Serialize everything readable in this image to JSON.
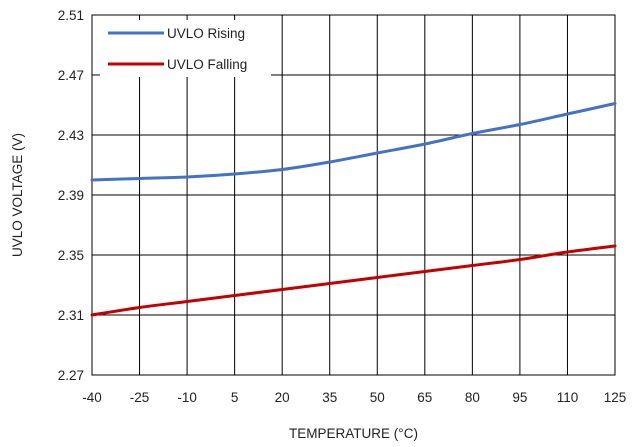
{
  "chart_data": {
    "type": "line",
    "xlabel": "TEMPERATURE (°C)",
    "ylabel": "UVLO VOLTAGE (V)",
    "xlim": [
      -40,
      125
    ],
    "ylim": [
      2.27,
      2.51
    ],
    "x_ticks": [
      "-40",
      "-25",
      "-10",
      "5",
      "20",
      "35",
      "50",
      "65",
      "80",
      "95",
      "110",
      "125"
    ],
    "y_ticks": [
      "2.27",
      "2.31",
      "2.35",
      "2.39",
      "2.43",
      "2.47",
      "2.51"
    ],
    "grid": true,
    "legend_position": "top-left",
    "x": [
      -40,
      -25,
      -10,
      5,
      20,
      35,
      50,
      65,
      80,
      95,
      110,
      125
    ],
    "series": [
      {
        "name": "UVLO Rising",
        "color": "#4472C4",
        "values": [
          2.4,
          2.401,
          2.402,
          2.404,
          2.407,
          2.412,
          2.418,
          2.424,
          2.431,
          2.437,
          2.444,
          2.451
        ]
      },
      {
        "name": "UVLO Falling",
        "color": "#C00000",
        "values": [
          2.31,
          2.315,
          2.319,
          2.323,
          2.327,
          2.331,
          2.335,
          2.339,
          2.343,
          2.347,
          2.352,
          2.356
        ]
      }
    ]
  }
}
